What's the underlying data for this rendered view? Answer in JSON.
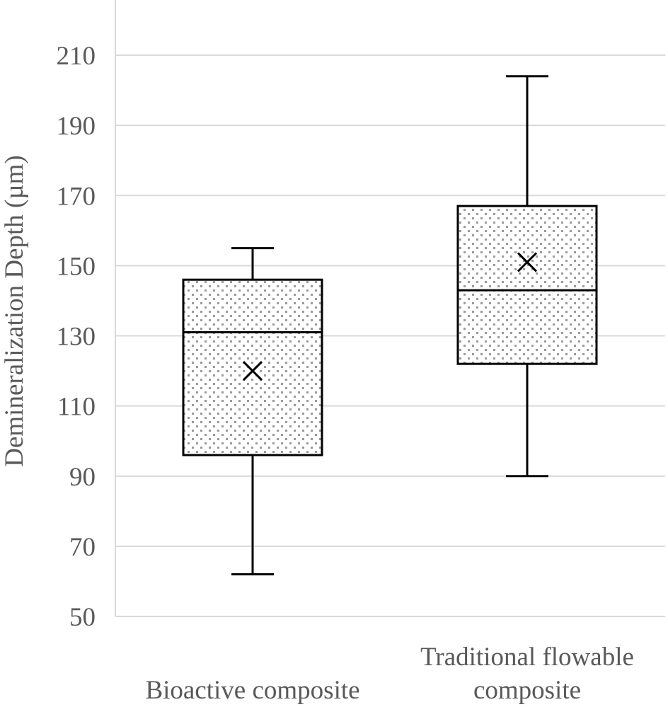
{
  "chart_data": {
    "type": "box",
    "title": "",
    "xlabel": "",
    "ylabel": "Demineralization Depth (µm)",
    "ylim": [
      50,
      230
    ],
    "yticks": [
      50,
      70,
      90,
      110,
      130,
      150,
      170,
      190,
      210
    ],
    "grid": true,
    "categories": [
      {
        "lines": [
          "Bioactive composite"
        ]
      },
      {
        "lines": [
          "Traditional flowable",
          "composite"
        ]
      }
    ],
    "boxes": [
      {
        "min": 62,
        "q1": 96,
        "median": 131,
        "q3": 146,
        "max": 155,
        "mean": 120
      },
      {
        "min": 90,
        "q1": 122,
        "median": 143,
        "q3": 167,
        "max": 204,
        "mean": 151
      }
    ]
  }
}
